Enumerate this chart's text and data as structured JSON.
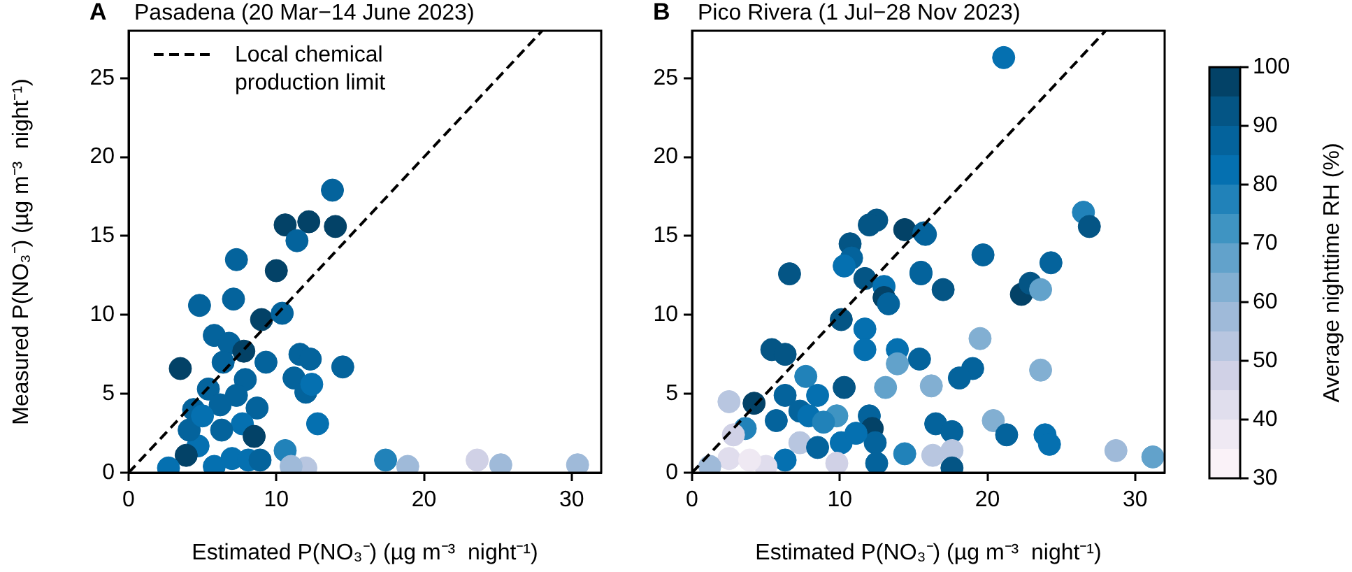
{
  "chart_data": [
    {
      "type": "scatter",
      "annotations": [
        "A"
      ],
      "title": "Pasadena (20 Mar−14 June 2023)",
      "xlabel": "Estimated P(NO₃⁻) (µg m⁻³  night⁻¹)",
      "ylabel": "Measured P(NO₃⁻) (µg m⁻³  night⁻¹)",
      "xlim": [
        0,
        32
      ],
      "ylim": [
        0,
        28
      ],
      "xticks": [
        0,
        10,
        20,
        30
      ],
      "yticks": [
        0,
        5,
        10,
        15,
        20,
        25
      ],
      "grid": false,
      "legend": "top left",
      "marker": "circle",
      "series": [
        {
          "type": "scatter",
          "x": [
            13.8,
            10.6,
            12.2,
            14.0,
            11.4,
            7.3,
            10.0,
            4.8,
            7.1,
            9.0,
            10.4,
            5.8,
            6.8,
            7.8,
            3.5,
            6.4,
            9.3,
            11.6,
            12.3,
            14.5,
            11.2,
            12.0,
            12.4,
            7.9,
            5.4,
            7.3,
            8.7,
            4.4,
            6.2,
            7.7,
            12.8,
            8.5,
            4.7,
            3.9,
            10.6,
            2.7,
            5.8,
            7.0,
            8.1,
            8.9,
            17.4,
            12.0,
            11.0,
            4.1,
            6.3,
            5.0,
            18.9,
            23.6,
            25.2,
            30.4
          ],
          "values": [
            17.9,
            15.7,
            15.9,
            15.6,
            14.7,
            13.5,
            12.8,
            10.6,
            11.0,
            9.7,
            10.1,
            8.7,
            8.2,
            7.7,
            6.6,
            7.0,
            7.0,
            7.5,
            7.2,
            6.7,
            6.0,
            5.1,
            5.6,
            5.9,
            5.3,
            4.9,
            4.1,
            4.0,
            4.3,
            3.1,
            3.1,
            2.3,
            1.7,
            1.1,
            1.4,
            0.3,
            0.4,
            0.9,
            0.8,
            0.8,
            0.8,
            0.3,
            0.4,
            2.7,
            2.7,
            3.6,
            0.4,
            0.8,
            0.5,
            0.5
          ],
          "colors": [
            "#04639c",
            "#034267",
            "#034267",
            "#034267",
            "#04639c",
            "#04639c",
            "#034267",
            "#04639c",
            "#04639c",
            "#034267",
            "#04639c",
            "#04639c",
            "#04639c",
            "#034267",
            "#034267",
            "#04639c",
            "#04639c",
            "#04639c",
            "#04639c",
            "#04639c",
            "#04639c",
            "#04639c",
            "#0570b0",
            "#04639c",
            "#04639c",
            "#04639c",
            "#04639c",
            "#04639c",
            "#04639c",
            "#0570b0",
            "#0570b0",
            "#034267",
            "#0570b0",
            "#034267",
            "#2182b9",
            "#0570b0",
            "#0570b0",
            "#0570b0",
            "#0570b0",
            "#04639c",
            "#2182b9",
            "#b8c6e0",
            "#9fbad9",
            "#04639c",
            "#04639c",
            "#0570b0",
            "#9fbad9",
            "#d0d1e6",
            "#9fbad9",
            "#9fbad9"
          ]
        },
        {
          "type": "line",
          "name": "Local chemical production limit",
          "color": "#000000",
          "line_style": "dashed",
          "marker": "none",
          "x": [
            0,
            28
          ],
          "values": [
            0,
            28
          ]
        }
      ]
    },
    {
      "type": "scatter",
      "annotations": [
        "B"
      ],
      "title": "Pico Rivera (1 Jul−28 Nov 2023)",
      "xlabel": "Estimated P(NO₃⁻) (µg m⁻³  night⁻¹)",
      "xlim": [
        0,
        32
      ],
      "ylim": [
        0,
        28
      ],
      "xticks": [
        0,
        10,
        20,
        30
      ],
      "yticks": [
        0,
        5,
        10,
        15,
        20,
        25
      ],
      "grid": false,
      "marker": "circle",
      "clim": [
        30,
        100
      ],
      "cticks": [
        30,
        40,
        50,
        60,
        70,
        80,
        90,
        100
      ],
      "clabel": "Average nighttime RH (%)",
      "series": [
        {
          "type": "scatter",
          "x": [
            12.5,
            12.0,
            14.4,
            15.7,
            10.7,
            10.8,
            10.3,
            11.7,
            6.6,
            15.5,
            13.0,
            13.0,
            13.3,
            10.1,
            11.7,
            11.7,
            5.4,
            6.3,
            13.9,
            13.9,
            10.3,
            7.7,
            13.1,
            2.5,
            4.2,
            6.3,
            8.5,
            5.7,
            7.3,
            7.9,
            9.8,
            12.0,
            12.2,
            3.6,
            2.8,
            7.3,
            8.5,
            10.1,
            12.4,
            2.5,
            6.3,
            9.8,
            12.5,
            14.4,
            5.0,
            1.2,
            3.9,
            11.1,
            8.9,
            21.1,
            26.5,
            26.9,
            15.8,
            19.7,
            24.3,
            15.5,
            17.0,
            22.3,
            22.9,
            23.6,
            19.5,
            15.4,
            19.0,
            18.1,
            16.2,
            23.6,
            16.5,
            17.6,
            20.4,
            21.3,
            23.9,
            24.2,
            28.7,
            31.2,
            16.3,
            17.6,
            17.6
          ],
          "values": [
            16.0,
            15.7,
            15.4,
            15.2,
            14.5,
            13.6,
            13.1,
            12.3,
            12.6,
            12.7,
            11.8,
            11.1,
            10.7,
            9.7,
            9.1,
            7.8,
            7.8,
            7.5,
            7.8,
            6.9,
            5.4,
            6.1,
            5.4,
            4.5,
            4.4,
            4.9,
            4.9,
            3.3,
            3.9,
            3.6,
            3.6,
            3.6,
            2.8,
            2.8,
            2.4,
            1.9,
            1.6,
            1.9,
            1.9,
            0.9,
            0.8,
            0.6,
            0.6,
            1.2,
            0.4,
            0.4,
            0.8,
            2.5,
            3.2,
            26.3,
            16.5,
            15.6,
            15.1,
            13.8,
            13.3,
            12.6,
            11.6,
            11.3,
            12.0,
            11.6,
            8.5,
            7.2,
            6.6,
            6.0,
            5.5,
            6.5,
            3.1,
            2.6,
            3.3,
            2.4,
            2.4,
            1.8,
            1.4,
            1.0,
            1.1,
            1.4,
            0.3
          ],
          "cvalues": [
            92,
            92,
            95,
            88,
            92,
            88,
            82,
            92,
            92,
            88,
            82,
            98,
            88,
            92,
            82,
            80,
            92,
            92,
            80,
            65,
            92,
            75,
            68,
            52,
            98,
            85,
            82,
            88,
            85,
            82,
            70,
            85,
            98,
            78,
            48,
            50,
            85,
            82,
            88,
            42,
            80,
            45,
            85,
            75,
            40,
            55,
            38,
            80,
            75,
            80,
            75,
            92,
            88,
            88,
            88,
            88,
            92,
            98,
            92,
            65,
            62,
            85,
            85,
            85,
            62,
            62,
            85,
            88,
            62,
            88,
            80,
            82,
            58,
            68,
            52,
            50,
            92
          ],
          "colors": [
            "#045585",
            "#045585",
            "#034267",
            "#04639c",
            "#045585",
            "#04639c",
            "#0570b0",
            "#045585",
            "#045585",
            "#04639c",
            "#0570b0",
            "#034267",
            "#04639c",
            "#045585",
            "#0570b0",
            "#0570b0",
            "#045585",
            "#045585",
            "#0570b0",
            "#62a2cb",
            "#045585",
            "#2182b9",
            "#62a2cb",
            "#b8c6e0",
            "#034267",
            "#04639c",
            "#0570b0",
            "#04639c",
            "#04639c",
            "#0570b0",
            "#3f94c2",
            "#04639c",
            "#034267",
            "#2182b9",
            "#d0d1e6",
            "#b8c6e0",
            "#04639c",
            "#0570b0",
            "#04639c",
            "#e0dded",
            "#0570b0",
            "#d0d1e6",
            "#04639c",
            "#2182b9",
            "#e0dded",
            "#9fbad9",
            "#efe9f3",
            "#0570b0",
            "#2182b9",
            "#0570b0",
            "#2182b9",
            "#045585",
            "#04639c",
            "#04639c",
            "#04639c",
            "#04639c",
            "#045585",
            "#034267",
            "#045585",
            "#62a2cb",
            "#82afd2",
            "#04639c",
            "#04639c",
            "#04639c",
            "#82afd2",
            "#82afd2",
            "#04639c",
            "#04639c",
            "#82afd2",
            "#04639c",
            "#0570b0",
            "#0570b0",
            "#9fbad9",
            "#62a2cb",
            "#b8c6e0",
            "#b8c6e0",
            "#045585"
          ]
        },
        {
          "type": "line",
          "color": "#000000",
          "line_style": "dashed",
          "marker": "none",
          "x": [
            0,
            28
          ],
          "values": [
            0,
            28
          ]
        }
      ]
    }
  ]
}
